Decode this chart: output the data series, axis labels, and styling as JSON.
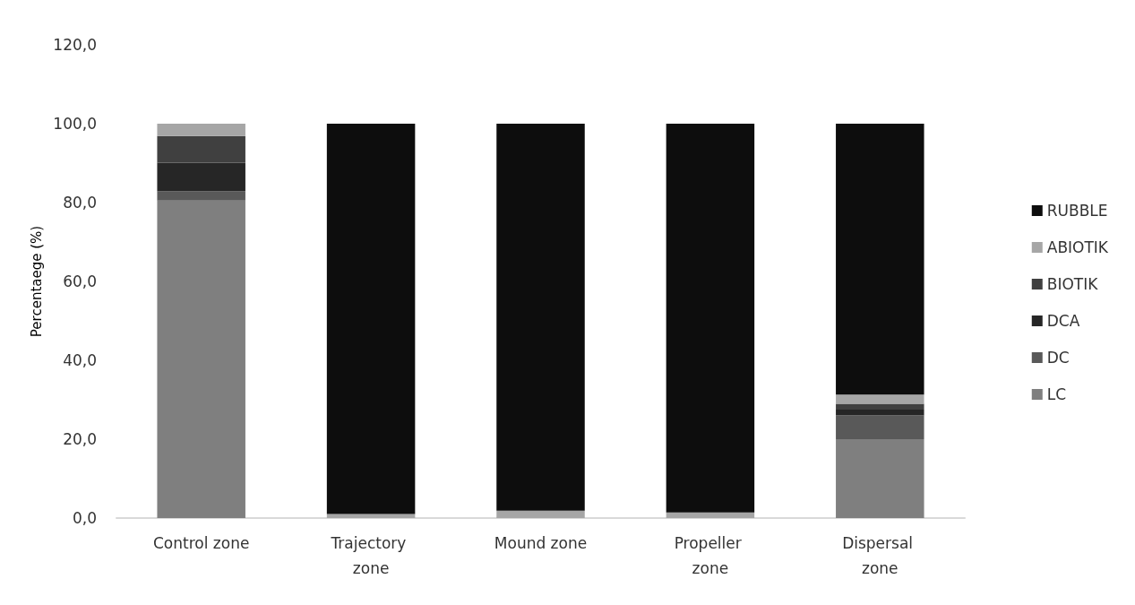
{
  "chart_data": {
    "type": "bar",
    "stacked": true,
    "ylabel": "Percentaege (%)",
    "categories": [
      "Control zone",
      "Trajectory zone",
      "Mound zone",
      "Propeller zone",
      "Dispersal zone"
    ],
    "series": [
      {
        "name": "LC",
        "color": "#7f7f7f",
        "values": [
          80.5,
          0,
          0,
          0,
          20.0
        ]
      },
      {
        "name": "DC",
        "color": "#595959",
        "values": [
          2.4,
          0,
          0,
          0,
          6.0
        ]
      },
      {
        "name": "DCA",
        "color": "#262626",
        "values": [
          7.2,
          0,
          0,
          0,
          1.5
        ]
      },
      {
        "name": "BIOTIK",
        "color": "#404040",
        "values": [
          6.8,
          0,
          0,
          0,
          1.5
        ]
      },
      {
        "name": "ABIOTIK",
        "color": "#a6a6a6",
        "values": [
          3.1,
          1.0,
          1.9,
          1.4,
          2.3
        ]
      },
      {
        "name": "RUBBLE",
        "color": "#0d0d0d",
        "values": [
          0,
          99.0,
          98.1,
          98.6,
          68.7
        ]
      }
    ],
    "ylim": [
      0,
      120
    ],
    "yticks": [
      {
        "value": 0,
        "label": "0,0"
      },
      {
        "value": 20,
        "label": "20,0"
      },
      {
        "value": 40,
        "label": "40,0"
      },
      {
        "value": 60,
        "label": "60,0"
      },
      {
        "value": 80,
        "label": "80,0"
      },
      {
        "value": 100,
        "label": "100,0"
      },
      {
        "value": 120,
        "label": "120,0"
      }
    ],
    "grid": false,
    "legend": "right"
  }
}
